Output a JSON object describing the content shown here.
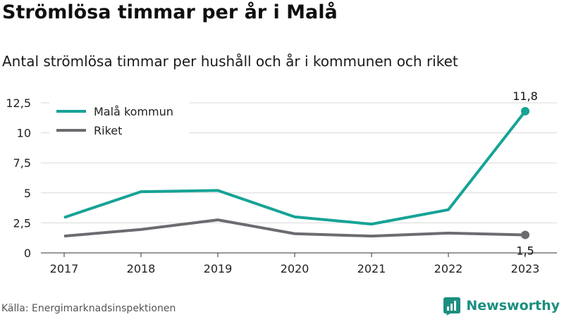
{
  "header": {
    "title": "Strömlösa timmar per år i Malå",
    "subtitle": "Antal strömlösa timmar per hushåll och år i kommunen och riket"
  },
  "footer": {
    "source": "Källa: Energimarknadsinspektionen",
    "brand": "Newsworthy",
    "brand_icon": "bar-chart-logo-icon"
  },
  "colors": {
    "accent": "#16a396",
    "secondary": "#6c6b70",
    "grid": "#d9d9d9",
    "brand": "#1b8f80"
  },
  "chart_data": {
    "type": "line",
    "x": [
      "2017",
      "2018",
      "2019",
      "2020",
      "2021",
      "2022",
      "2023"
    ],
    "yticks": [
      "0",
      "2,5",
      "5",
      "7,5",
      "10",
      "12,5"
    ],
    "ylim": [
      0,
      12.5
    ],
    "grid": true,
    "legend_position": "top-left",
    "series": [
      {
        "name": "Malå kommun",
        "color": "#16a396",
        "values": [
          2.95,
          5.1,
          5.2,
          3.0,
          2.4,
          3.6,
          11.8
        ],
        "end_label": "11,8"
      },
      {
        "name": "Riket",
        "color": "#6c6b70",
        "values": [
          1.4,
          1.95,
          2.75,
          1.6,
          1.4,
          1.65,
          1.5
        ],
        "end_label": "1,5"
      }
    ]
  }
}
